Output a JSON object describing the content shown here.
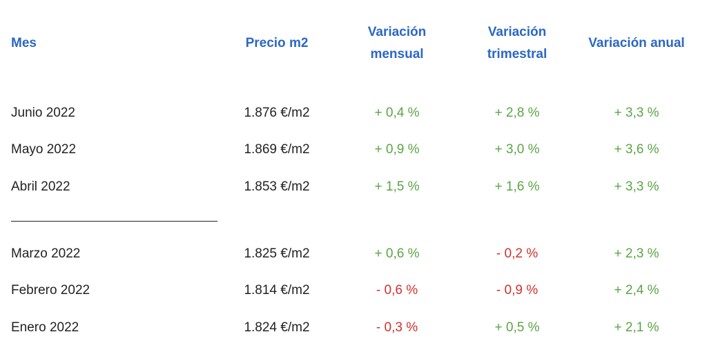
{
  "table": {
    "headers": [
      "Mes",
      "Precio m2",
      "Variación mensual",
      "Variación trimestral",
      "Variación anual"
    ],
    "rows": [
      [
        "Junio 2022",
        "1.876 €/m2",
        "+ 0,4 %",
        "+ 2,8 %",
        "+ 3,3 %"
      ],
      [
        "Mayo 2022",
        "1.869 €/m2",
        "+ 0,9 %",
        "+ 3,0 %",
        "+ 3,6 %"
      ],
      [
        "Abril 2022",
        "1.853 €/m2",
        "+ 1,5 %",
        "+ 1,6 %",
        "+ 3,3 %"
      ],
      [
        "Marzo 2022",
        "1.825 €/m2",
        "+ 0,6 %",
        "- 0,2 %",
        "+ 2,3 %"
      ],
      [
        "Febrero 2022",
        "1.814 €/m2",
        "- 0,6 %",
        "- 0,9 %",
        "+ 2,4 %"
      ],
      [
        "Enero 2022",
        "1.824 €/m2",
        "- 0,3 %",
        "+ 0,5 %",
        "+ 2,1 %"
      ]
    ]
  }
}
